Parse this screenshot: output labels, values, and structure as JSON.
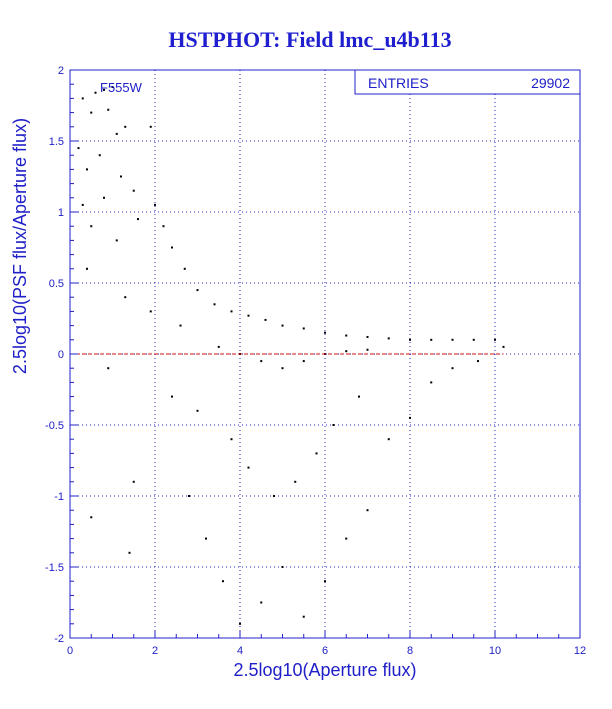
{
  "title": "HSTPHOT: Field lmc_u4b113",
  "filter_label": "F555W",
  "stats_box": {
    "label": "ENTRIES",
    "value": "29902"
  },
  "colors": {
    "axis": "#2020c8",
    "grid": "#2020c8",
    "points": "#000000",
    "reference_line": "#d01010",
    "title": "#1f1fd0"
  },
  "chart_data": {
    "type": "scatter",
    "title": "HSTPHOT: Field lmc_u4b113",
    "xlabel": "2.5log10(Aperture flux)",
    "ylabel": "2.5log10(PSF flux/Aperture flux)",
    "xlim": [
      0,
      12
    ],
    "ylim": [
      -2,
      2
    ],
    "x_ticks": [
      0,
      2,
      4,
      6,
      8,
      10,
      12
    ],
    "y_ticks": [
      -2,
      -1.5,
      -1,
      -0.5,
      0,
      0.5,
      1,
      1.5,
      2
    ],
    "x_tick_labels": [
      "0",
      "2",
      "4",
      "6",
      "8",
      "10",
      "12"
    ],
    "y_tick_labels": [
      "-2",
      "-1.5",
      "-1",
      "-0.5",
      "0",
      "0.5",
      "1",
      "1.5",
      "2"
    ],
    "grid": "dotted",
    "reference_line_y": 0,
    "entries": 29902,
    "series": [
      {
        "values": [
          [
            0.6,
            1.84
          ],
          [
            0.8,
            1.86
          ],
          [
            1.0,
            1.88
          ],
          [
            0.3,
            1.8
          ],
          [
            1.1,
            1.55
          ],
          [
            0.5,
            1.7
          ],
          [
            0.9,
            1.72
          ],
          [
            1.3,
            1.6
          ],
          [
            0.2,
            1.45
          ],
          [
            0.4,
            1.3
          ],
          [
            0.7,
            1.4
          ],
          [
            1.2,
            1.25
          ],
          [
            0.3,
            1.05
          ],
          [
            0.8,
            1.1
          ],
          [
            1.5,
            1.15
          ],
          [
            1.9,
            1.6
          ],
          [
            0.5,
            0.9
          ],
          [
            1.1,
            0.8
          ],
          [
            1.6,
            0.95
          ],
          [
            2.0,
            1.05
          ],
          [
            2.2,
            0.9
          ],
          [
            2.4,
            0.75
          ],
          [
            2.7,
            0.6
          ],
          [
            3.0,
            0.45
          ],
          [
            3.4,
            0.35
          ],
          [
            3.8,
            0.3
          ],
          [
            4.2,
            0.27
          ],
          [
            4.6,
            0.24
          ],
          [
            5.0,
            0.2
          ],
          [
            5.5,
            0.18
          ],
          [
            6.0,
            0.15
          ],
          [
            6.5,
            0.13
          ],
          [
            7.0,
            0.12
          ],
          [
            7.5,
            0.11
          ],
          [
            8.0,
            0.1
          ],
          [
            8.5,
            0.1
          ],
          [
            9.0,
            0.1
          ],
          [
            9.5,
            0.1
          ],
          [
            10.0,
            0.1
          ],
          [
            10.2,
            0.05
          ],
          [
            3.5,
            0.05
          ],
          [
            4.0,
            0.0
          ],
          [
            4.5,
            -0.05
          ],
          [
            5.0,
            -0.1
          ],
          [
            5.5,
            -0.05
          ],
          [
            6.0,
            0.0
          ],
          [
            6.5,
            0.02
          ],
          [
            7.0,
            0.03
          ],
          [
            3.0,
            -0.4
          ],
          [
            3.8,
            -0.6
          ],
          [
            4.2,
            -0.8
          ],
          [
            4.8,
            -1.0
          ],
          [
            5.3,
            -0.9
          ],
          [
            5.8,
            -0.7
          ],
          [
            6.2,
            -0.5
          ],
          [
            6.8,
            -0.3
          ],
          [
            3.2,
            -1.3
          ],
          [
            3.6,
            -1.6
          ],
          [
            4.0,
            -1.9
          ],
          [
            4.5,
            -1.75
          ],
          [
            5.0,
            -1.5
          ],
          [
            5.5,
            -1.85
          ],
          [
            6.0,
            -1.6
          ],
          [
            6.5,
            -1.3
          ],
          [
            7.0,
            -1.1
          ],
          [
            7.5,
            -0.6
          ],
          [
            8.0,
            -0.45
          ],
          [
            8.5,
            -0.2
          ],
          [
            9.0,
            -0.1
          ],
          [
            9.6,
            -0.05
          ],
          [
            1.5,
            -0.9
          ],
          [
            0.5,
            -1.15
          ],
          [
            1.4,
            -1.4
          ],
          [
            0.9,
            -0.1
          ],
          [
            2.4,
            -0.3
          ],
          [
            2.6,
            0.2
          ],
          [
            2.8,
            -1.0
          ],
          [
            1.9,
            0.3
          ],
          [
            0.4,
            0.6
          ],
          [
            1.3,
            0.4
          ]
        ]
      }
    ]
  }
}
